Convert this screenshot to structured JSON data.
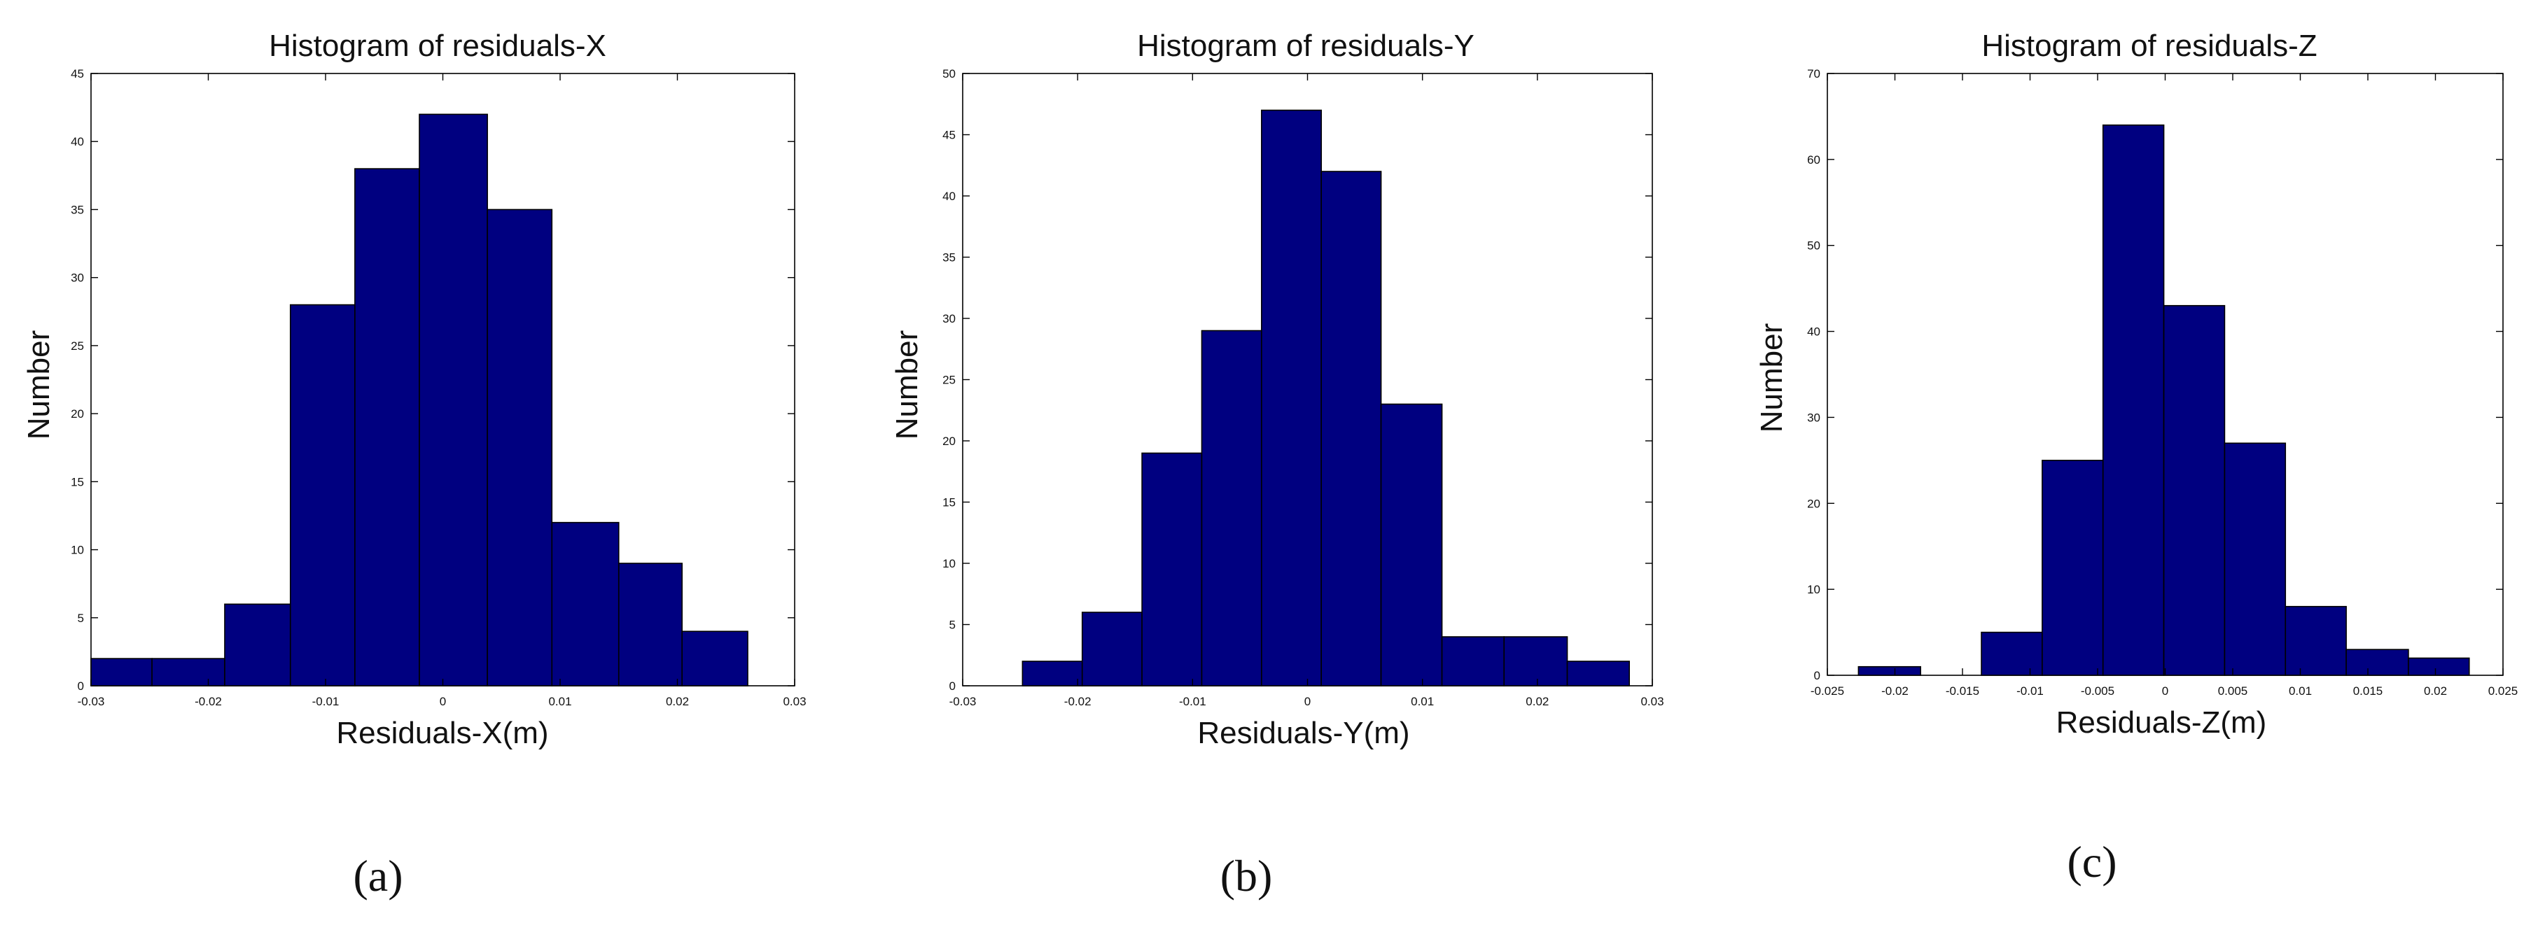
{
  "colors": {
    "bar": "#000080",
    "bar_edge": "#000000",
    "axes": "#000000",
    "background": "#ffffff"
  },
  "chart_data": [
    {
      "type": "bar",
      "panel": "(a)",
      "title": "Histogram of residuals-X",
      "xlabel": "Residuals-X(m)",
      "ylabel": "Number",
      "xlim": [
        -0.03,
        0.03
      ],
      "ylim": [
        0,
        45
      ],
      "xticks": [
        "-0.03",
        "-0.02",
        "-0.01",
        "0",
        "0.01",
        "0.02",
        "0.03"
      ],
      "yticks": [
        "0",
        "5",
        "10",
        "15",
        "20",
        "25",
        "30",
        "35",
        "40",
        "45"
      ],
      "bins": [
        {
          "x0": -0.03,
          "x1": -0.0248,
          "count": 2
        },
        {
          "x0": -0.0248,
          "x1": -0.0186,
          "count": 2
        },
        {
          "x0": -0.0186,
          "x1": -0.013,
          "count": 6
        },
        {
          "x0": -0.013,
          "x1": -0.0075,
          "count": 28
        },
        {
          "x0": -0.0075,
          "x1": -0.002,
          "count": 38
        },
        {
          "x0": -0.002,
          "x1": 0.0038,
          "count": 42
        },
        {
          "x0": 0.0038,
          "x1": 0.0093,
          "count": 35
        },
        {
          "x0": 0.0093,
          "x1": 0.015,
          "count": 12
        },
        {
          "x0": 0.015,
          "x1": 0.0204,
          "count": 9
        },
        {
          "x0": 0.0204,
          "x1": 0.026,
          "count": 4
        }
      ]
    },
    {
      "type": "bar",
      "panel": "(b)",
      "title": "Histogram of residuals-Y",
      "xlabel": "Residuals-Y(m)",
      "ylabel": "Number",
      "xlim": [
        -0.03,
        0.03
      ],
      "ylim": [
        0,
        50
      ],
      "xticks": [
        "-0.03",
        "-0.02",
        "-0.01",
        "0",
        "0.01",
        "0.02",
        "0.03"
      ],
      "yticks": [
        "0",
        "5",
        "10",
        "15",
        "20",
        "25",
        "30",
        "35",
        "40",
        "45",
        "50"
      ],
      "bins": [
        {
          "x0": -0.0248,
          "x1": -0.0196,
          "count": 2
        },
        {
          "x0": -0.0196,
          "x1": -0.0144,
          "count": 6
        },
        {
          "x0": -0.0144,
          "x1": -0.0092,
          "count": 19
        },
        {
          "x0": -0.0092,
          "x1": -0.004,
          "count": 29
        },
        {
          "x0": -0.004,
          "x1": 0.0012,
          "count": 47
        },
        {
          "x0": 0.0012,
          "x1": 0.0064,
          "count": 42
        },
        {
          "x0": 0.0064,
          "x1": 0.0117,
          "count": 23
        },
        {
          "x0": 0.0117,
          "x1": 0.0171,
          "count": 4
        },
        {
          "x0": 0.0171,
          "x1": 0.0226,
          "count": 4
        },
        {
          "x0": 0.0226,
          "x1": 0.028,
          "count": 2
        }
      ]
    },
    {
      "type": "bar",
      "panel": "(c)",
      "title": "Histogram of residuals-Z",
      "xlabel": "Residuals-Z(m)",
      "ylabel": "Number",
      "xlim": [
        -0.025,
        0.025
      ],
      "ylim": [
        0,
        70
      ],
      "xticks": [
        "-0.025",
        "-0.02",
        "-0.015",
        "-0.01",
        "-0.005",
        "0",
        "0.005",
        "0.01",
        "0.015",
        "0.02",
        "0.025"
      ],
      "yticks": [
        "0",
        "10",
        "20",
        "30",
        "40",
        "50",
        "60",
        "70"
      ],
      "bins": [
        {
          "x0": -0.0227,
          "x1": -0.0181,
          "count": 1
        },
        {
          "x0": -0.0181,
          "x1": -0.0136,
          "count": 0
        },
        {
          "x0": -0.0136,
          "x1": -0.0091,
          "count": 5
        },
        {
          "x0": -0.0091,
          "x1": -0.0046,
          "count": 25
        },
        {
          "x0": -0.0046,
          "x1": -0.0001,
          "count": 64
        },
        {
          "x0": -0.0001,
          "x1": 0.0044,
          "count": 43
        },
        {
          "x0": 0.0044,
          "x1": 0.0089,
          "count": 27
        },
        {
          "x0": 0.0089,
          "x1": 0.0134,
          "count": 8
        },
        {
          "x0": 0.0134,
          "x1": 0.018,
          "count": 3
        },
        {
          "x0": 0.018,
          "x1": 0.0225,
          "count": 2
        }
      ]
    }
  ]
}
